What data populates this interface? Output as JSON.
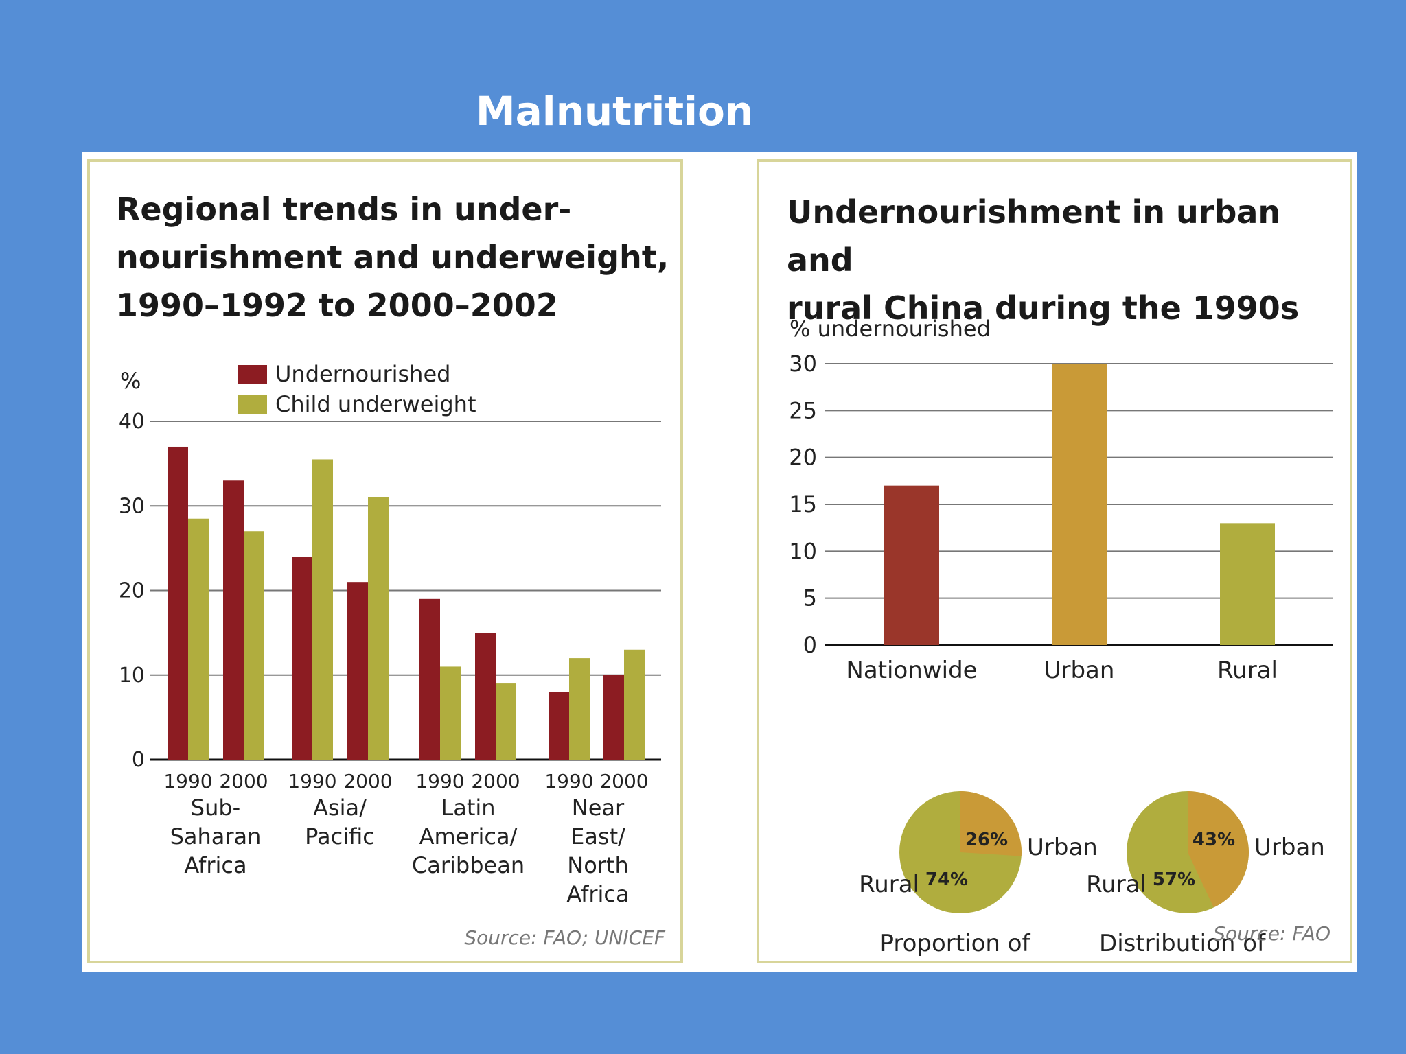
{
  "slide_title": "Malnutrition",
  "left_chart": {
    "title_lines": [
      "Regional trends in under-",
      "nourishment and underweight,",
      "1990–1992 to 2000–2002"
    ],
    "source": "Source: FAO; UNICEF"
  },
  "right_chart": {
    "title_lines": [
      "Undernourishment in urban and",
      "rural China during the 1990s"
    ],
    "source": "Source: FAO"
  },
  "colors": {
    "undernourished": "#8c1c22",
    "child_underweight": "#b0ad3e",
    "nationwide": "#9a362a",
    "urban": "#c99a37",
    "rural": "#b0ad3e"
  },
  "chart_data": [
    {
      "type": "bar",
      "title": "Regional trends in under-nourishment and underweight, 1990–1992 to 2000–2002",
      "ylabel": "%",
      "ylim": [
        0,
        40
      ],
      "yticks": [
        "0",
        "10",
        "20",
        "30",
        "40"
      ],
      "groups": [
        "Sub-\nSaharan\nAfrica",
        "Asia/\nPacific",
        "Latin\nAmerica/\nCaribbean",
        "Near\nEast/\nNorth\nAfrica"
      ],
      "categories": [
        "1990",
        "2000",
        "1990",
        "2000",
        "1990",
        "2000",
        "1990",
        "2000"
      ],
      "series": [
        {
          "name": "Undernourished",
          "values": [
            37,
            33,
            24,
            21,
            19,
            15,
            8,
            10
          ]
        },
        {
          "name": "Child underweight",
          "values": [
            28.5,
            27,
            35.5,
            31,
            11,
            9,
            12,
            13
          ]
        }
      ],
      "grid": true,
      "legend": "top-center"
    },
    {
      "type": "bar",
      "title": "Undernourishment in urban and rural China during the 1990s",
      "ylabel": "% undernourished",
      "ylim": [
        0,
        30
      ],
      "yticks": [
        "0",
        "5",
        "10",
        "15",
        "20",
        "25",
        "30"
      ],
      "categories": [
        "Nationwide",
        "Urban",
        "Rural"
      ],
      "values": [
        17,
        30,
        13
      ],
      "grid": true
    },
    {
      "type": "pie",
      "title": "Proportion of\ntotal population",
      "slices": [
        {
          "name": "Urban",
          "value": 26,
          "label": "26%"
        },
        {
          "name": "Rural",
          "value": 74,
          "label": "74%"
        }
      ]
    },
    {
      "type": "pie",
      "title": "Distribution of\nundernourished",
      "slices": [
        {
          "name": "Urban",
          "value": 43,
          "label": "43%"
        },
        {
          "name": "Rural",
          "value": 57,
          "label": "57%"
        }
      ]
    }
  ]
}
